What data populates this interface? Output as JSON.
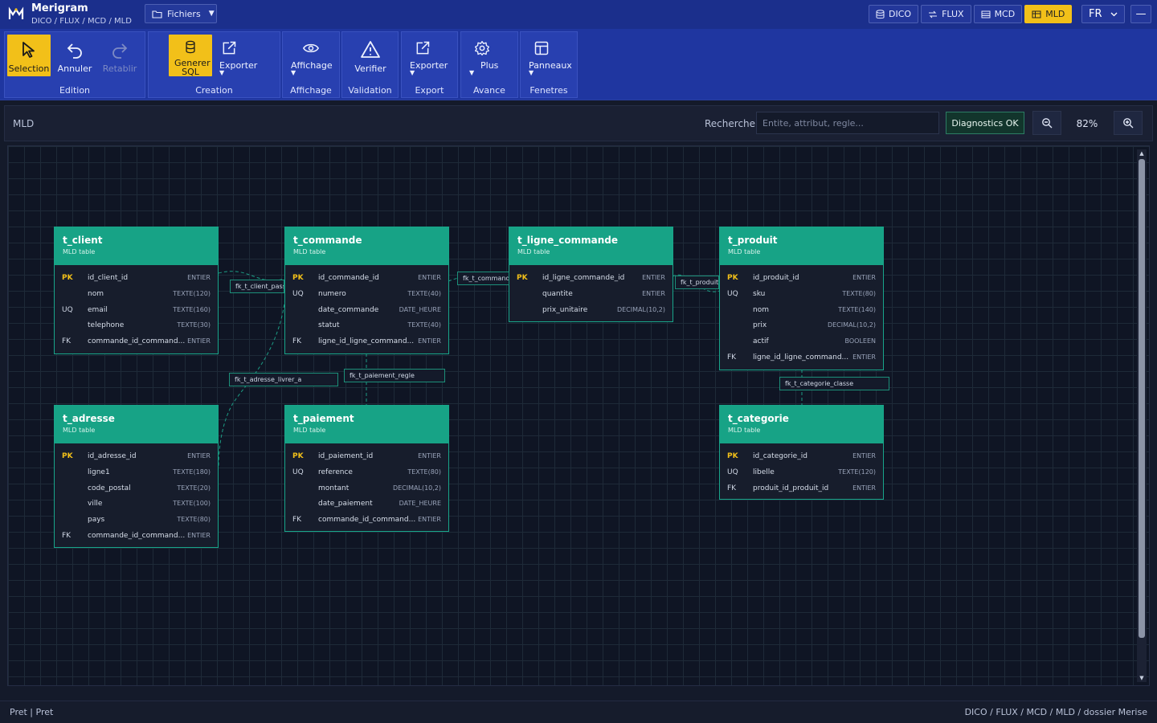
{
  "app": {
    "name": "Merigram",
    "breadcrumb": "DICO / FLUX / MCD / MLD",
    "files_label": "Fichiers",
    "modes": [
      {
        "label": "DICO",
        "icon": "database-icon",
        "active": false
      },
      {
        "label": "FLUX",
        "icon": "flow-icon",
        "active": false
      },
      {
        "label": "MCD",
        "icon": "table-icon",
        "active": false
      },
      {
        "label": "MLD",
        "icon": "table-icon",
        "active": true
      }
    ],
    "lang": "FR",
    "minimize": "—"
  },
  "ribbon": {
    "groups": [
      {
        "label": "Edition",
        "tools": [
          {
            "label": "Selection",
            "icon": "cursor-icon",
            "active": true,
            "disabled": false
          },
          {
            "label": "Annuler",
            "icon": "undo-icon",
            "active": false,
            "disabled": false
          },
          {
            "label": "Retablir",
            "icon": "redo-icon",
            "active": false,
            "disabled": true
          }
        ]
      },
      {
        "label": "Creation",
        "tools": [
          {
            "label": "Generer SQL",
            "icon": "database-icon",
            "active": true
          },
          {
            "label": "Exporter",
            "icon": "export-icon",
            "active": false,
            "dropdown": true
          }
        ]
      },
      {
        "label": "Affichage",
        "tools": [
          {
            "label": "Affichage",
            "icon": "eye-icon",
            "dropdown": true
          }
        ]
      },
      {
        "label": "Validation",
        "tools": [
          {
            "label": "Verifier",
            "icon": "warning-icon"
          }
        ]
      },
      {
        "label": "Export",
        "tools": [
          {
            "label": "Exporter",
            "icon": "export-icon",
            "dropdown": true
          }
        ]
      },
      {
        "label": "Avance",
        "tools": [
          {
            "label": "Plus",
            "icon": "gear-icon",
            "dropdown": true
          }
        ]
      },
      {
        "label": "Fenetres",
        "tools": [
          {
            "label": "Panneaux",
            "icon": "panels-icon",
            "dropdown": true
          }
        ]
      }
    ]
  },
  "toolbar": {
    "view_label": "MLD",
    "search_label": "Recherche",
    "search_placeholder": "Entite, attribut, regle...",
    "diagnostics": "Diagnostics OK",
    "zoom": "82%"
  },
  "entities": [
    {
      "name": "t_client",
      "sub": "MLD table",
      "rows": [
        {
          "key": "PK",
          "attr": "id_client_id",
          "type": "ENTIER"
        },
        {
          "key": "",
          "attr": "nom",
          "type": "TEXTE(120)"
        },
        {
          "key": "UQ",
          "attr": "email",
          "type": "TEXTE(160)"
        },
        {
          "key": "",
          "attr": "telephone",
          "type": "TEXTE(30)"
        },
        {
          "key": "FK",
          "attr": "commande_id_command...",
          "type": "ENTIER"
        }
      ]
    },
    {
      "name": "t_commande",
      "sub": "MLD table",
      "rows": [
        {
          "key": "PK",
          "attr": "id_commande_id",
          "type": "ENTIER"
        },
        {
          "key": "UQ",
          "attr": "numero",
          "type": "TEXTE(40)"
        },
        {
          "key": "",
          "attr": "date_commande",
          "type": "DATE_HEURE"
        },
        {
          "key": "",
          "attr": "statut",
          "type": "TEXTE(40)"
        },
        {
          "key": "FK",
          "attr": "ligne_id_ligne_command...",
          "type": "ENTIER"
        }
      ]
    },
    {
      "name": "t_ligne_commande",
      "sub": "MLD table",
      "rows": [
        {
          "key": "PK",
          "attr": "id_ligne_commande_id",
          "type": "ENTIER"
        },
        {
          "key": "",
          "attr": "quantite",
          "type": "ENTIER"
        },
        {
          "key": "",
          "attr": "prix_unitaire",
          "type": "DECIMAL(10,2)"
        }
      ]
    },
    {
      "name": "t_produit",
      "sub": "MLD table",
      "rows": [
        {
          "key": "PK",
          "attr": "id_produit_id",
          "type": "ENTIER"
        },
        {
          "key": "UQ",
          "attr": "sku",
          "type": "TEXTE(80)"
        },
        {
          "key": "",
          "attr": "nom",
          "type": "TEXTE(140)"
        },
        {
          "key": "",
          "attr": "prix",
          "type": "DECIMAL(10,2)"
        },
        {
          "key": "",
          "attr": "actif",
          "type": "BOOLEEN"
        },
        {
          "key": "FK",
          "attr": "ligne_id_ligne_command...",
          "type": "ENTIER"
        }
      ]
    },
    {
      "name": "t_adresse",
      "sub": "MLD table",
      "rows": [
        {
          "key": "PK",
          "attr": "id_adresse_id",
          "type": "ENTIER"
        },
        {
          "key": "",
          "attr": "ligne1",
          "type": "TEXTE(180)"
        },
        {
          "key": "",
          "attr": "code_postal",
          "type": "TEXTE(20)"
        },
        {
          "key": "",
          "attr": "ville",
          "type": "TEXTE(100)"
        },
        {
          "key": "",
          "attr": "pays",
          "type": "TEXTE(80)"
        },
        {
          "key": "FK",
          "attr": "commande_id_command...",
          "type": "ENTIER"
        }
      ]
    },
    {
      "name": "t_paiement",
      "sub": "MLD table",
      "rows": [
        {
          "key": "PK",
          "attr": "id_paiement_id",
          "type": "ENTIER"
        },
        {
          "key": "UQ",
          "attr": "reference",
          "type": "TEXTE(80)"
        },
        {
          "key": "",
          "attr": "montant",
          "type": "DECIMAL(10,2)"
        },
        {
          "key": "",
          "attr": "date_paiement",
          "type": "DATE_HEURE"
        },
        {
          "key": "FK",
          "attr": "commande_id_command...",
          "type": "ENTIER"
        }
      ]
    },
    {
      "name": "t_categorie",
      "sub": "MLD table",
      "rows": [
        {
          "key": "PK",
          "attr": "id_categorie_id",
          "type": "ENTIER"
        },
        {
          "key": "UQ",
          "attr": "libelle",
          "type": "TEXTE(120)"
        },
        {
          "key": "FK",
          "attr": "produit_id_produit_id",
          "type": "ENTIER"
        }
      ]
    }
  ],
  "fk_labels": [
    "fk_t_client_pass",
    "fk_t_command",
    "fk_t_produit",
    "fk_t_adresse_livrer_a",
    "fk_t_paiement_regle",
    "fk_t_categorie_classe"
  ],
  "status": {
    "left": "Pret | Pret",
    "right": "DICO / FLUX / MCD / MLD / dossier Merise"
  }
}
